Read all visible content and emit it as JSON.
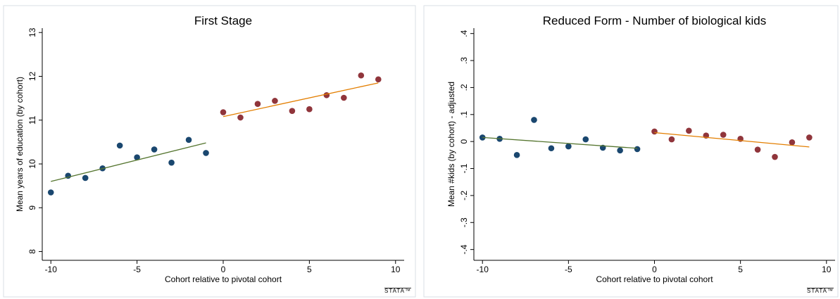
{
  "chart_data": [
    {
      "type": "scatter",
      "title": "First Stage",
      "xlabel": "Cohort relative to pivotal cohort",
      "ylabel": "Mean years of education (by cohort)",
      "xlim": [
        -10.5,
        10.5
      ],
      "xticks": [
        -10,
        -5,
        0,
        5,
        10
      ],
      "ylim": [
        7.8,
        13.1
      ],
      "yticks": [
        8,
        9,
        10,
        11,
        12,
        13
      ],
      "logo": "STATA™",
      "series": [
        {
          "mode": "markers",
          "color": "#1a476f",
          "x": [
            -10,
            -9,
            -8,
            -7,
            -6,
            -5,
            -4,
            -3,
            -2,
            -1
          ],
          "values": [
            9.35,
            9.73,
            9.68,
            9.9,
            10.42,
            10.15,
            10.33,
            10.03,
            10.55,
            10.25
          ]
        },
        {
          "mode": "markers",
          "color": "#90353b",
          "x": [
            0,
            1,
            2,
            3,
            4,
            5,
            6,
            7,
            8,
            9
          ],
          "values": [
            11.18,
            11.06,
            11.37,
            11.44,
            11.21,
            11.25,
            11.57,
            11.51,
            12.02,
            11.93
          ]
        },
        {
          "mode": "line",
          "color": "#55752f",
          "x": [
            -10,
            -1
          ],
          "values": [
            9.6,
            10.48
          ]
        },
        {
          "mode": "line",
          "color": "#e37e00",
          "x": [
            0,
            9
          ],
          "values": [
            11.08,
            11.85
          ]
        }
      ]
    },
    {
      "type": "scatter",
      "title": "Reduced Form - Number of biological kids",
      "xlabel": "Cohort relative to pivotal cohort",
      "ylabel": "Mean #kids (by cohort) - adjusted",
      "xlim": [
        -10.5,
        10.5
      ],
      "xticks": [
        -10,
        -5,
        0,
        5,
        10
      ],
      "ylim": [
        -0.44,
        0.42
      ],
      "yticks": [
        {
          "value": -0.4,
          "label": "-.4"
        },
        {
          "value": -0.3,
          "label": "-.3"
        },
        {
          "value": -0.2,
          "label": "-.2"
        },
        {
          "value": -0.1,
          "label": "-.1"
        },
        0,
        {
          "value": 0.1,
          "label": ".1"
        },
        {
          "value": 0.2,
          "label": ".2"
        },
        {
          "value": 0.3,
          "label": ".3"
        },
        {
          "value": 0.4,
          "label": ".4"
        }
      ],
      "logo": "STATA™",
      "series": [
        {
          "mode": "markers",
          "color": "#1a476f",
          "x": [
            -10,
            -9,
            -8,
            -7,
            -6,
            -5,
            -4,
            -3,
            -2,
            -1
          ],
          "values": [
            0.015,
            0.01,
            -0.05,
            0.08,
            -0.025,
            -0.018,
            0.008,
            -0.023,
            -0.033,
            -0.028
          ]
        },
        {
          "mode": "markers",
          "color": "#90353b",
          "x": [
            0,
            1,
            2,
            3,
            4,
            5,
            6,
            7,
            8,
            9
          ],
          "values": [
            0.037,
            0.008,
            0.04,
            0.022,
            0.025,
            0.01,
            -0.03,
            -0.057,
            -0.003,
            0.015
          ]
        },
        {
          "mode": "line",
          "color": "#55752f",
          "x": [
            -10,
            -1
          ],
          "values": [
            0.015,
            -0.025
          ]
        },
        {
          "mode": "line",
          "color": "#e37e00",
          "x": [
            0,
            9
          ],
          "values": [
            0.033,
            -0.02
          ]
        }
      ]
    }
  ]
}
